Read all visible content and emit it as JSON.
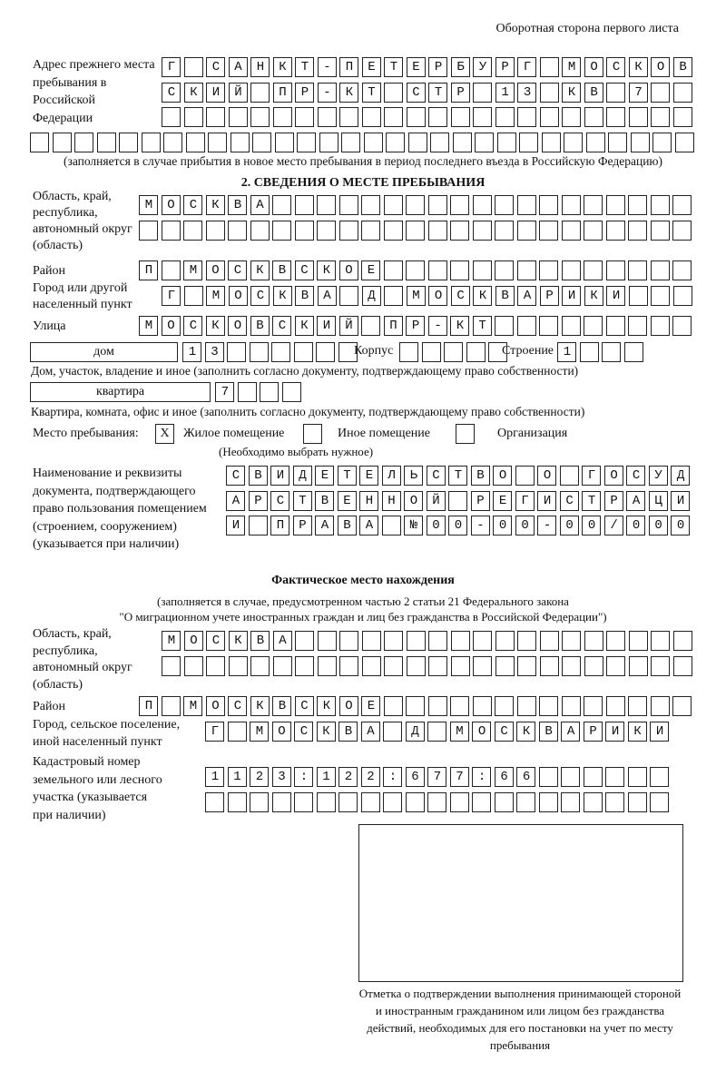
{
  "page_header": "Оборотная сторона первого листа",
  "previous_address": {
    "label": "Адрес прежнего места пребывания в Российской Федерации",
    "rows": [
      "Г САНКТ-ПЕТЕРБУРГ МОСКОВ",
      "СКИЙ ПР-КТ СТР 13 КВ 7  ",
      "                        ",
      "                              "
    ],
    "note": "(заполняется в случае прибытия в новое место пребывания в период последнего въезда в Российскую Федерацию)"
  },
  "section2": {
    "heading": "2. СВЕДЕНИЯ О МЕСТЕ ПРЕБЫВАНИЯ",
    "region_label": "Область, край, республика, автономный округ (область)",
    "region_rows": [
      "МОСКВА                   ",
      "                         "
    ],
    "district_label": "Район",
    "district_row": "П МОСКВСКОЕ              ",
    "city_label": "Город или другой населенный пункт",
    "city_row": "Г МОСКВА Д МОСКВАРИКИ   ",
    "street_label": "Улица",
    "street_row": "МОСКОВСКИЙ ПР-КТ         ",
    "house_type": "дом",
    "house_row": "13      ",
    "korpus_label": "Корпус",
    "korpus_row": "     ",
    "building_label": "Строение",
    "building_row": "1   ",
    "house_note": "Дом, участок, владение и иное (заполнить согласно документу, подтверждающему право собственности)",
    "apt_type": "квартира",
    "apt_row": "7   ",
    "apt_note": "Квартира, комната, офис и иное (заполнить согласно документу, подтверждающему право собственности)",
    "stay_label": "Место пребывания:",
    "stay_options": [
      {
        "mark": "X",
        "label": "Жилое помещение"
      },
      {
        "mark": "",
        "label": "Иное помещение"
      },
      {
        "mark": "",
        "label": "Организация"
      }
    ],
    "stay_note": "(Необходимо выбрать нужное)",
    "document_label": "Наименование и реквизиты документа, подтверждающего право пользования помещением (строением, сооружением) (указывается при наличии)",
    "document_rows": [
      "СВИДЕТЕЛЬСТВО О ГОСУД",
      "АРСТВЕННОЙ РЕГИСТРАЦИ",
      "И ПРАВА №00-00-00/000"
    ]
  },
  "actual": {
    "heading": "Фактическое место нахождения",
    "note1": "(заполняется в случае, предусмотренном частью 2 статьи 21 Федерального закона",
    "note2": "\"О миграционном учете иностранных граждан и лиц без гражданства в Российской Федерации\")",
    "region_label": "Область, край, республика, автономный округ (область)",
    "region_rows": [
      "МОСКВА                  ",
      "                        "
    ],
    "district_label": "Район",
    "district_row": "П МОСКВСКОЕ              ",
    "city_label": "Город, сельское поселение, иной населенный пункт",
    "city_row": "Г МОСКВА Д МОСКВАРИКИ",
    "cadastral_label": "Кадастровый номер земельного или лесного участка (указывается при наличии)",
    "cadastral_rows": [
      "1123:122:677:66      ",
      "                     "
    ]
  },
  "stamp_caption": "Отметка о подтверждении выполнения принимающей стороной и иностранным гражданином или лицом без гражданства действий, необходимых для его постановки на учет по месту пребывания"
}
